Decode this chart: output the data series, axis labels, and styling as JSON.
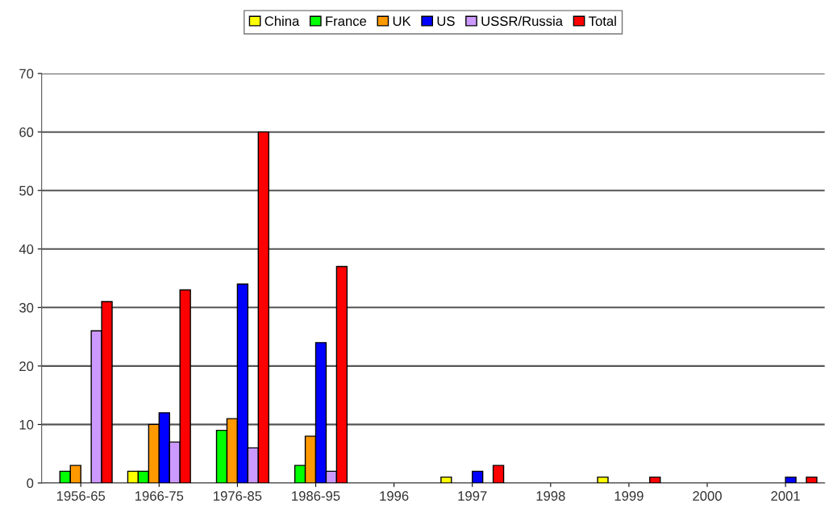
{
  "chart_data": {
    "type": "bar",
    "categories": [
      "1956-65",
      "1966-75",
      "1976-85",
      "1986-95",
      "1996",
      "1997",
      "1998",
      "1999",
      "2000",
      "2001"
    ],
    "series": [
      {
        "name": "China",
        "color": "#ffff00",
        "values": [
          0,
          2,
          0,
          0,
          0,
          1,
          0,
          1,
          0,
          0
        ]
      },
      {
        "name": "France",
        "color": "#00ff00",
        "values": [
          2,
          2,
          9,
          3,
          0,
          0,
          0,
          0,
          0,
          0
        ]
      },
      {
        "name": "UK",
        "color": "#ff9900",
        "values": [
          3,
          10,
          11,
          8,
          0,
          0,
          0,
          0,
          0,
          0
        ]
      },
      {
        "name": "US",
        "color": "#0000ff",
        "values": [
          0,
          12,
          34,
          24,
          0,
          2,
          0,
          0,
          0,
          1
        ]
      },
      {
        "name": "USSR/Russia",
        "color": "#cc99ff",
        "values": [
          26,
          7,
          6,
          2,
          0,
          0,
          0,
          0,
          0,
          0
        ]
      },
      {
        "name": "Total",
        "color": "#ff0000",
        "values": [
          31,
          33,
          60,
          37,
          0,
          3,
          0,
          1,
          0,
          1
        ]
      }
    ],
    "ylim": [
      0,
      70
    ],
    "yticks": [
      0,
      10,
      20,
      30,
      40,
      50,
      60,
      70
    ],
    "grid": "y",
    "legend": "top"
  }
}
